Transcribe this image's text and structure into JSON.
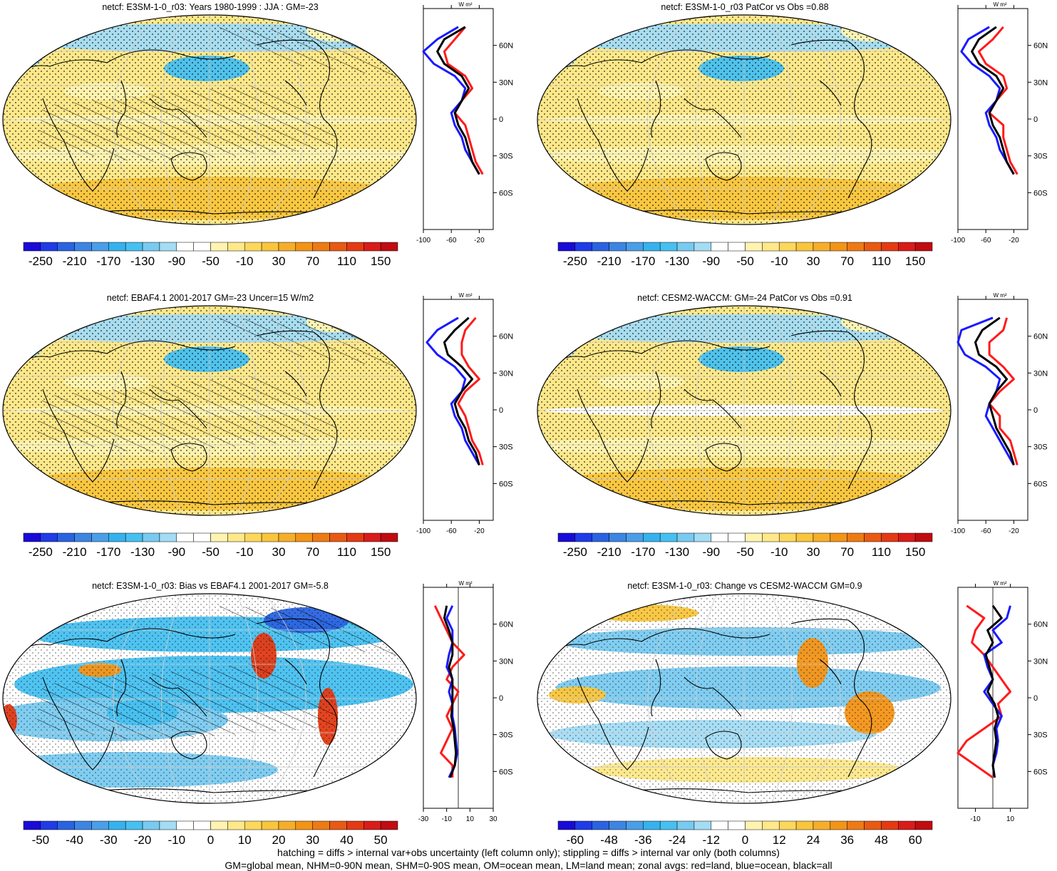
{
  "palette": [
    "#1a0ad8",
    "#1f3be8",
    "#2a63e0",
    "#3c85e2",
    "#4a9ee8",
    "#35b2ee",
    "#46c0f0",
    "#79caf0",
    "#a3dcf4",
    "#ffffff",
    "#ffffff",
    "#fff3b0",
    "#fde88a",
    "#fcd75c",
    "#f9c53c",
    "#f6ae2a",
    "#f39417",
    "#ee7a14",
    "#e85a12",
    "#e33a14",
    "#d81c1a",
    "#bf0c10"
  ],
  "panels": [
    {
      "id": "p1",
      "title": "netcf: E3SM-1-0_r03: Years 1980-1999 : JJA : GM=-23",
      "palette_offset": 0,
      "hatch": true,
      "stipple": "broad",
      "colorbar_labels": [
        "-250",
        "-210",
        "-170",
        "-130",
        "-90",
        "-50",
        "-10",
        "30",
        "70",
        "110",
        "150"
      ],
      "zonal_ticks": [
        "-100",
        "-60",
        "-20"
      ],
      "zonal_unit": "W m²",
      "lat_labels": [
        "60N",
        "30N",
        "0",
        "30S",
        "60S"
      ]
    },
    {
      "id": "p2",
      "title": "netcf: E3SM-1-0_r03 PatCor vs Obs =0.88",
      "palette_offset": 0,
      "hatch": false,
      "stipple": "broad",
      "colorbar_labels": [
        "-250",
        "-210",
        "-170",
        "-130",
        "-90",
        "-50",
        "-10",
        "30",
        "70",
        "110",
        "150"
      ],
      "zonal_ticks": [
        "-100",
        "-60",
        "-20"
      ],
      "zonal_unit": "W m²",
      "lat_labels": [
        "60N",
        "30N",
        "0",
        "30S",
        "60S"
      ]
    },
    {
      "id": "p3",
      "title": "netcf: EBAF4.1 2001-2017 GM=-23 Uncer=15 W/m2",
      "palette_offset": 0,
      "hatch": true,
      "stipple": "broad",
      "colorbar_labels": [
        "-250",
        "-210",
        "-170",
        "-130",
        "-90",
        "-50",
        "-10",
        "30",
        "70",
        "110",
        "150"
      ],
      "zonal_ticks": [
        "-100",
        "-60",
        "-20"
      ],
      "zonal_unit": "W m²",
      "lat_labels": [
        "60N",
        "30N",
        "0",
        "30S",
        "60S"
      ]
    },
    {
      "id": "p4",
      "title": "netcf: CESM2-WACCM: GM=-24 PatCor vs Obs =0.91",
      "palette_offset": 0,
      "hatch": false,
      "stipple": "broad",
      "colorbar_labels": [
        "-250",
        "-210",
        "-170",
        "-130",
        "-90",
        "-50",
        "-10",
        "30",
        "70",
        "110",
        "150"
      ],
      "zonal_ticks": [
        "-100",
        "-60",
        "-20"
      ],
      "zonal_unit": "W m²",
      "lat_labels": [
        "60N",
        "30N",
        "0",
        "30S",
        "60S"
      ]
    },
    {
      "id": "p5",
      "title": "netcf: E3SM-1-0_r03: Bias vs EBAF4.1 2001-2017 GM=-5.8",
      "palette_offset": 0,
      "hatch": true,
      "stipple": "partial",
      "colorbar_labels": [
        "-50",
        "-40",
        "-30",
        "-20",
        "-10",
        "0",
        "10",
        "20",
        "30",
        "40",
        "50"
      ],
      "zonal_ticks": [
        "-30",
        "-10",
        "10",
        "30"
      ],
      "zonal_unit": "W m²",
      "lat_labels": [
        "60N",
        "30N",
        "0",
        "30S",
        "60S"
      ]
    },
    {
      "id": "p6",
      "title": "netcf: E3SM-1-0_r03: Change vs CESM2-WACCM GM=0.9",
      "palette_offset": 0,
      "hatch": false,
      "stipple": "partial",
      "colorbar_labels": [
        "-60",
        "-48",
        "-36",
        "-24",
        "-12",
        "0",
        "12",
        "24",
        "36",
        "48",
        "60"
      ],
      "zonal_ticks": [
        "-10",
        "10"
      ],
      "zonal_unit": "W m²",
      "lat_labels": [
        "60N",
        "30N",
        "0",
        "30S",
        "60S"
      ]
    }
  ],
  "chart_data": [
    {
      "type": "heatmap",
      "title": "netcf: E3SM-1-0_r03: Years 1980-1999 : JJA : GM=-23",
      "colorbar": [
        -250,
        -210,
        -170,
        -130,
        -90,
        -50,
        -10,
        30,
        70,
        110,
        150
      ],
      "zonal": {
        "lat": [
          75,
          65,
          55,
          45,
          35,
          25,
          15,
          5,
          -5,
          -15,
          -25,
          -35,
          -45
        ],
        "land": [
          -40,
          -55,
          -70,
          -65,
          -40,
          -30,
          -45,
          -55,
          -40,
          -35,
          -30,
          -25,
          -15
        ],
        "ocean": [
          -50,
          -80,
          -100,
          -85,
          -55,
          -40,
          -45,
          -60,
          -55,
          -45,
          -40,
          -30,
          -20
        ],
        "all": [
          -40,
          -70,
          -80,
          -70,
          -45,
          -35,
          -45,
          -55,
          -50,
          -40,
          -35,
          -30,
          -20
        ],
        "xlim": [
          -100,
          0
        ]
      }
    },
    {
      "type": "heatmap",
      "title": "netcf: E3SM-1-0_r03 PatCor vs Obs =0.88",
      "colorbar": [
        -250,
        -210,
        -170,
        -130,
        -90,
        -50,
        -10,
        30,
        70,
        110,
        150
      ],
      "zonal": {
        "lat": [
          75,
          65,
          55,
          45,
          35,
          25,
          15,
          5,
          -5,
          -15,
          -25,
          -35,
          -45
        ],
        "land": [
          -35,
          -50,
          -70,
          -60,
          -35,
          -30,
          -45,
          -55,
          -35,
          -35,
          -30,
          -25,
          -15
        ],
        "ocean": [
          -55,
          -85,
          -95,
          -80,
          -55,
          -40,
          -45,
          -60,
          -55,
          -45,
          -40,
          -30,
          -20
        ],
        "all": [
          -45,
          -70,
          -80,
          -70,
          -45,
          -35,
          -45,
          -55,
          -50,
          -40,
          -35,
          -30,
          -20
        ],
        "xlim": [
          -100,
          0
        ]
      }
    },
    {
      "type": "heatmap",
      "title": "netcf: EBAF4.1 2001-2017 GM=-23 Uncer=15 W/m2",
      "colorbar": [
        -250,
        -210,
        -170,
        -130,
        -90,
        -50,
        -10,
        30,
        70,
        110,
        150
      ],
      "zonal": {
        "lat": [
          75,
          65,
          55,
          45,
          35,
          25,
          15,
          5,
          -5,
          -15,
          -25,
          -35,
          -45
        ],
        "land": [
          -25,
          -40,
          -45,
          -45,
          -35,
          -20,
          -40,
          -50,
          -40,
          -35,
          -30,
          -20,
          -15
        ],
        "ocean": [
          -50,
          -80,
          -95,
          -80,
          -55,
          -40,
          -45,
          -60,
          -55,
          -45,
          -40,
          -30,
          -20
        ],
        "all": [
          -35,
          -55,
          -70,
          -65,
          -45,
          -30,
          -45,
          -55,
          -50,
          -40,
          -35,
          -25,
          -20
        ],
        "xlim": [
          -100,
          0
        ]
      }
    },
    {
      "type": "heatmap",
      "title": "netcf: CESM2-WACCM: GM=-24 PatCor vs Obs =0.91",
      "colorbar": [
        -250,
        -210,
        -170,
        -130,
        -90,
        -50,
        -10,
        30,
        70,
        110,
        150
      ],
      "zonal": {
        "lat": [
          75,
          65,
          55,
          45,
          35,
          25,
          15,
          5,
          -5,
          -15,
          -25,
          -35,
          -45
        ],
        "land": [
          -30,
          -35,
          -55,
          -55,
          -35,
          -20,
          -40,
          -55,
          -40,
          -40,
          -25,
          -20,
          -15
        ],
        "ocean": [
          -50,
          -95,
          -100,
          -90,
          -60,
          -40,
          -45,
          -55,
          -60,
          -50,
          -40,
          -30,
          -20
        ],
        "all": [
          -40,
          -65,
          -75,
          -70,
          -45,
          -30,
          -45,
          -55,
          -50,
          -45,
          -35,
          -25,
          -20
        ],
        "xlim": [
          -100,
          0
        ]
      }
    },
    {
      "type": "heatmap",
      "title": "netcf: E3SM-1-0_r03: Bias vs EBAF4.1 2001-2017 GM=-5.8",
      "colorbar": [
        -50,
        -40,
        -30,
        -20,
        -10,
        0,
        10,
        20,
        30,
        40,
        50
      ],
      "zonal": {
        "lat": [
          75,
          65,
          55,
          45,
          35,
          25,
          15,
          5,
          -5,
          -15,
          -25,
          -35,
          -45,
          -55,
          -65
        ],
        "land": [
          -20,
          -15,
          -10,
          -5,
          5,
          -5,
          -10,
          0,
          -5,
          -10,
          -5,
          -10,
          -15,
          -5,
          -5
        ],
        "ocean": [
          -5,
          -10,
          -5,
          -5,
          -8,
          -10,
          -5,
          -8,
          -5,
          -5,
          -3,
          -2,
          -1,
          -3,
          -8
        ],
        "all": [
          -10,
          -12,
          -8,
          -5,
          -5,
          -8,
          -5,
          -5,
          -5,
          -6,
          -4,
          -3,
          -2,
          -3,
          -7
        ],
        "xlim": [
          -30,
          30
        ]
      }
    },
    {
      "type": "heatmap",
      "title": "netcf: E3SM-1-0_r03: Change vs CESM2-WACCM GM=0.9",
      "colorbar": [
        -60,
        -48,
        -36,
        -24,
        -12,
        0,
        12,
        24,
        36,
        48,
        60
      ],
      "zonal": {
        "lat": [
          75,
          65,
          55,
          45,
          35,
          25,
          15,
          5,
          -5,
          -15,
          -25,
          -35,
          -45,
          -55,
          -65
        ],
        "land": [
          -15,
          -5,
          -10,
          -12,
          -5,
          0,
          5,
          10,
          3,
          5,
          -5,
          -15,
          -20,
          -10,
          0
        ],
        "ocean": [
          10,
          8,
          0,
          5,
          -5,
          -3,
          0,
          -5,
          0,
          5,
          2,
          3,
          2,
          0,
          1
        ],
        "all": [
          0,
          5,
          -3,
          0,
          -4,
          -2,
          0,
          -3,
          1,
          3,
          1,
          2,
          1,
          0,
          1
        ],
        "xlim": [
          -20,
          20
        ]
      }
    }
  ],
  "footer": {
    "line1": "hatching = diffs > internal var+obs uncertainty (left column only); stippling = diffs > internal var only (both columns)",
    "line2": "GM=global mean, NHM=0-90N mean, SHM=0-90S mean, OM=ocean mean, LM=land mean; zonal avgs: red=land, blue=ocean, black=all"
  }
}
